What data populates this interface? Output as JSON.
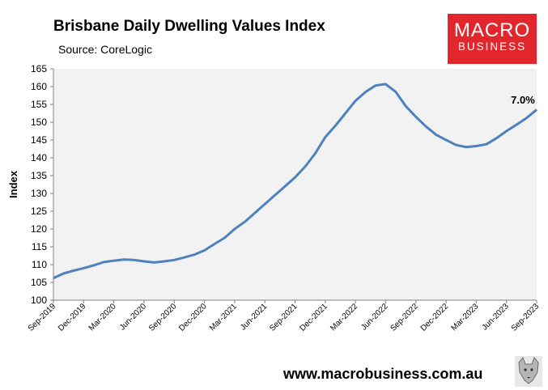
{
  "header": {
    "title": "Brisbane Daily Dwelling Values Index",
    "subtitle": "Source: CoreLogic"
  },
  "logo": {
    "line1": "MACRO",
    "line2": "BUSINESS",
    "color": "#e3262b"
  },
  "footer": {
    "url": "www.macrobusiness.com.au",
    "mascot_icon": "wolf-icon"
  },
  "colors": {
    "line": "#4f81bd",
    "plot_bg": "#f2f2f2"
  },
  "chart_data": {
    "type": "line",
    "title": "Brisbane Daily Dwelling Values Index",
    "subtitle": "Source: CoreLogic",
    "xlabel": "",
    "ylabel": "Index",
    "ylim": [
      100,
      165
    ],
    "yticks": [
      100,
      105,
      110,
      115,
      120,
      125,
      130,
      135,
      140,
      145,
      150,
      155,
      160,
      165
    ],
    "xlim": [
      "2019-09",
      "2023-09"
    ],
    "xticks": [
      "Sep-2019",
      "Dec-2019",
      "Mar-2020",
      "Jun-2020",
      "Sep-2020",
      "Dec-2020",
      "Mar-2021",
      "Jun-2021",
      "Sep-2021",
      "Dec-2021",
      "Mar-2022",
      "Jun-2022",
      "Sep-2022",
      "Dec-2022",
      "Mar-2023",
      "Jun-2023",
      "Sep-2023"
    ],
    "grid": false,
    "legend": "none",
    "annotation": "7.0%",
    "series": [
      {
        "x": [
          "Sep-2019",
          "Oct-2019",
          "Nov-2019",
          "Dec-2019",
          "Jan-2020",
          "Feb-2020",
          "Mar-2020",
          "Apr-2020",
          "May-2020",
          "Jun-2020",
          "Jul-2020",
          "Aug-2020",
          "Sep-2020",
          "Oct-2020",
          "Nov-2020",
          "Dec-2020",
          "Jan-2021",
          "Feb-2021",
          "Mar-2021",
          "Apr-2021",
          "May-2021",
          "Jun-2021",
          "Jul-2021",
          "Aug-2021",
          "Sep-2021",
          "Oct-2021",
          "Nov-2021",
          "Dec-2021",
          "Jan-2022",
          "Feb-2022",
          "Mar-2022",
          "Apr-2022",
          "May-2022",
          "Jun-2022",
          "Jul-2022",
          "Aug-2022",
          "Sep-2022",
          "Oct-2022",
          "Nov-2022",
          "Dec-2022",
          "Jan-2023",
          "Feb-2023",
          "Mar-2023",
          "Apr-2023",
          "May-2023",
          "Jun-2023",
          "Jul-2023",
          "Aug-2023",
          "Sep-2023"
        ],
        "values": [
          106.2,
          107.5,
          108.3,
          109.0,
          109.8,
          110.7,
          111.1,
          111.4,
          111.3,
          110.9,
          110.6,
          110.9,
          111.3,
          112.0,
          112.8,
          114.0,
          115.8,
          117.5,
          120.0,
          122.0,
          124.5,
          127.0,
          129.5,
          132.0,
          134.5,
          137.5,
          141.2,
          145.8,
          149.0,
          152.5,
          156.0,
          158.5,
          160.3,
          160.7,
          158.5,
          154.5,
          151.5,
          148.8,
          146.5,
          145.0,
          143.6,
          143.0,
          143.3,
          143.8,
          145.5,
          147.5,
          149.3,
          151.2,
          153.5
        ]
      }
    ]
  }
}
